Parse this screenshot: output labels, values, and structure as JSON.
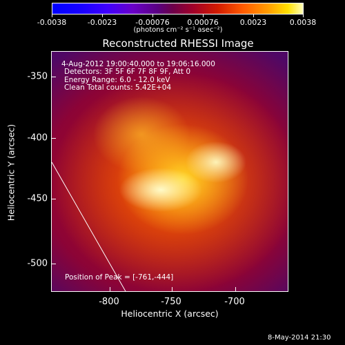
{
  "colorbar": {
    "tick_labels": [
      "-0.0038",
      "-0.0023",
      "-0.00076",
      "0.00076",
      "0.0023",
      "0.0038"
    ],
    "units_label": "(photons cm⁻² s⁻¹ asec⁻²)"
  },
  "plot": {
    "title": "Reconstructed RHESSI Image",
    "info_lines": [
      "4-Aug-2012 19:00:40.000 to 19:06:16.000",
      "Detectors: 3F 5F 6F 7F 8F 9F, Att 0",
      "Energy Range: 6.0 - 12.0 keV",
      "Clean      Total counts: 5.42E+04"
    ],
    "peak_text": "Position of Peak = [-761,-444]",
    "x_axis_title": "Heliocentric X (arcsec)",
    "y_axis_title": "Heliocentric Y (arcsec)",
    "x_tick_labels": [
      "-800",
      "-750",
      "-700"
    ],
    "y_tick_labels": [
      "-350",
      "-400",
      "-450",
      "-500"
    ]
  },
  "footer": {
    "date_stamp": "8-May-2014 21:30"
  },
  "colors": {
    "background": "#000000",
    "text": "#ffffff"
  }
}
